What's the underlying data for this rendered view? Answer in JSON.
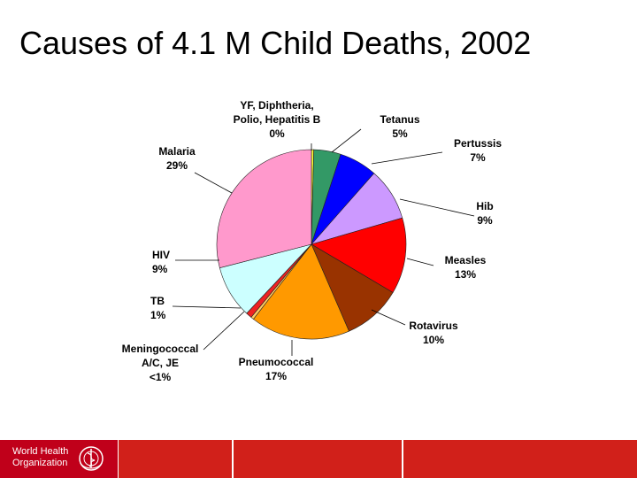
{
  "slide": {
    "title": "Causes of 4.1 M Child Deaths, 2002"
  },
  "footer": {
    "org_line1": "World Health",
    "org_line2": "Organization",
    "color_primary": "#d1201a",
    "color_dark": "#c0001a"
  },
  "chart_data": {
    "type": "pie",
    "title": "",
    "unit": "%",
    "slices": [
      {
        "name": "YF, Diphtheria, Polio, Hepatitis B",
        "label_lines": [
          "YF, Diphtheria,",
          "Polio, Hepatitis B",
          "0%"
        ],
        "value": 0.4,
        "color": "#ffff33"
      },
      {
        "name": "Tetanus",
        "label_lines": [
          "Tetanus",
          "5%"
        ],
        "value": 4.6,
        "color": "#339966"
      },
      {
        "name": "Pertussis",
        "label_lines": [
          "Pertussis",
          "7%"
        ],
        "value": 6.5,
        "color": "#0000ff"
      },
      {
        "name": "Hib",
        "label_lines": [
          "Hib",
          "9%"
        ],
        "value": 9.0,
        "color": "#cc99ff"
      },
      {
        "name": "Measles",
        "label_lines": [
          "Measles",
          "13%"
        ],
        "value": 13.0,
        "color": "#ff0000"
      },
      {
        "name": "Rotavirus",
        "label_lines": [
          "Rotavirus",
          "10%"
        ],
        "value": 10.0,
        "color": "#993300"
      },
      {
        "name": "Pneumococcal",
        "label_lines": [
          "Pneumococcal",
          "17%"
        ],
        "value": 17.0,
        "color": "#ff9900"
      },
      {
        "name": "Meningococcal A/C, JE",
        "label_lines": [
          "Meningococcal",
          "A/C, JE",
          "<1%"
        ],
        "value": 0.5,
        "color": "#ffcc66"
      },
      {
        "name": "TB",
        "label_lines": [
          "TB",
          "1%"
        ],
        "value": 1.0,
        "color": "#ee2222"
      },
      {
        "name": "HIV",
        "label_lines": [
          "HIV",
          "9%"
        ],
        "value": 9.0,
        "color": "#ccffff"
      },
      {
        "name": "Malaria",
        "label_lines": [
          "Malaria",
          "29%"
        ],
        "value": 29.0,
        "color": "#ff99cc"
      }
    ]
  }
}
